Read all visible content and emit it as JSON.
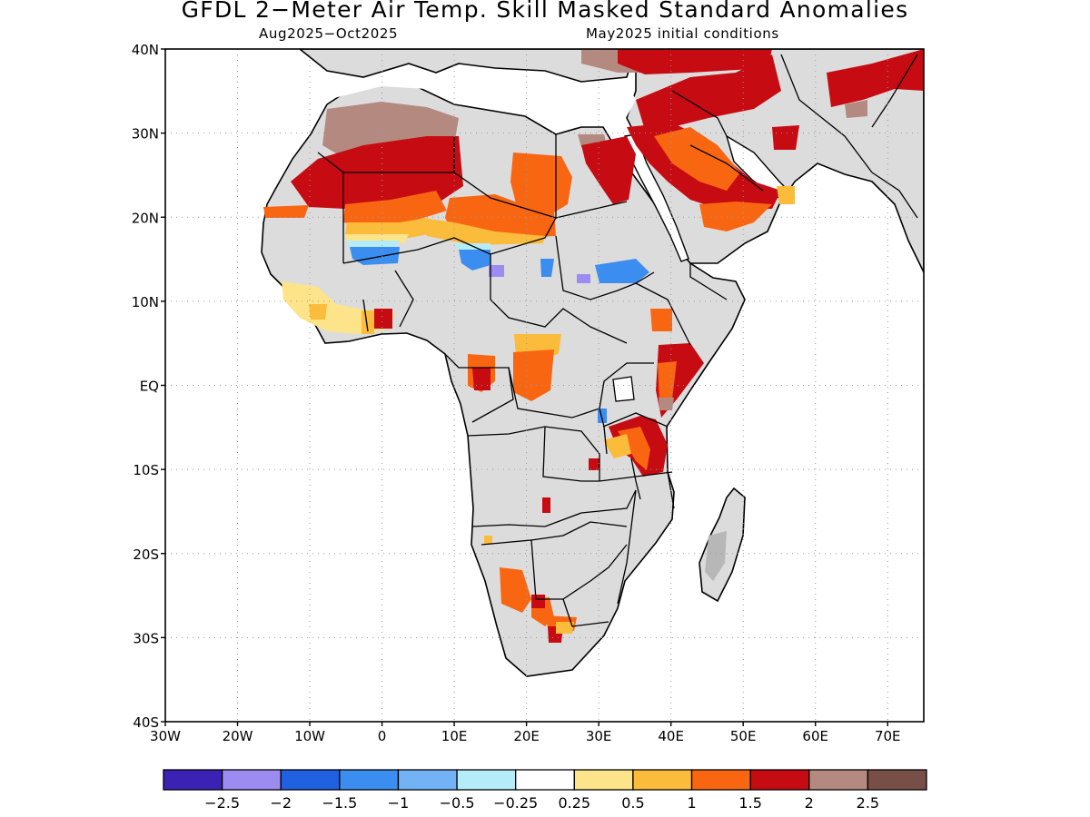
{
  "header": {
    "title": "GFDL 2−Meter Air Temp. Skill Masked Standard Anomalies",
    "period": "Aug2025−Oct2025",
    "init": "May2025 initial conditions"
  },
  "axes": {
    "lat_labels": [
      "40N",
      "30N",
      "20N",
      "10N",
      "EQ",
      "10S",
      "20S",
      "30S",
      "40S"
    ],
    "lat_values": [
      40,
      30,
      20,
      10,
      0,
      -10,
      -20,
      -30,
      -40
    ],
    "lon_labels": [
      "30W",
      "20W",
      "10W",
      "0",
      "10E",
      "20E",
      "30E",
      "40E",
      "50E",
      "60E",
      "70E"
    ],
    "lon_values": [
      -30,
      -20,
      -10,
      0,
      10,
      20,
      30,
      40,
      50,
      60,
      70
    ],
    "lon_range": [
      -30,
      75
    ],
    "lat_range": [
      -40,
      40
    ],
    "grid": "dotted"
  },
  "colorbar": {
    "colors": [
      "#3b22b4",
      "#9c8cf2",
      "#1f61e0",
      "#3b8ef0",
      "#73b2f5",
      "#b4ecf8",
      "#ffffff",
      "#fde38a",
      "#fbbb3b",
      "#f96612",
      "#c70b12",
      "#b48a80",
      "#774f47"
    ],
    "labels": [
      "−2.5",
      "−2",
      "−1.5",
      "−1",
      "−0.5",
      "−0.25",
      "0.25",
      "0.5",
      "1",
      "1.5",
      "2",
      "2.5"
    ]
  },
  "map": {
    "ocean_color": "#ffffff",
    "land_masked_color": "#dcdcdc",
    "coast_color": "#000000"
  }
}
